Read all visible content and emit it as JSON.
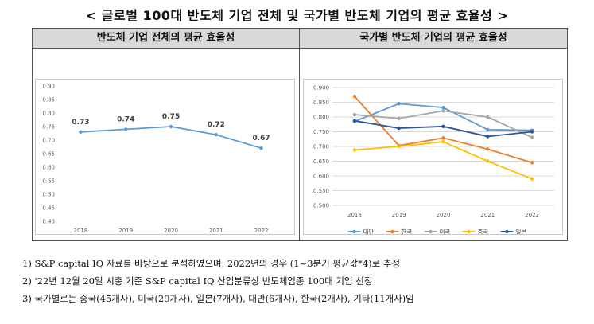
{
  "title": "< 글로벌 100대 반도체 기업 전체 및 국가별 반도체 기업의 평균 효율성 >",
  "chart_data": [
    {
      "type": "line",
      "title": "반도체 기업 전체의 평균 효율성",
      "x": [
        "2018",
        "2019",
        "2020",
        "2021",
        "2022"
      ],
      "series": [
        {
          "values": [
            0.73,
            0.74,
            0.75,
            0.72,
            0.67
          ],
          "color": "#5b9bd5"
        }
      ],
      "data_labels": [
        "0.73",
        "0.74",
        "0.75",
        "0.72",
        "0.67"
      ],
      "ylim": [
        0.4,
        0.9
      ],
      "yticks": [
        "0.40",
        "0.45",
        "0.50",
        "0.55",
        "0.60",
        "0.65",
        "0.70",
        "0.75",
        "0.80",
        "0.85",
        "0.90"
      ],
      "grid": false,
      "legend": "none"
    },
    {
      "type": "line",
      "title": "국가별 반도체 기업의 평균 효율성",
      "x": [
        "2018",
        "2019",
        "2020",
        "2021",
        "2022"
      ],
      "series": [
        {
          "name": "대만",
          "color": "#5b9bd5",
          "values": [
            0.785,
            0.845,
            0.832,
            0.757,
            0.755
          ]
        },
        {
          "name": "한국",
          "color": "#ed7d31",
          "values": [
            0.87,
            0.703,
            0.729,
            0.691,
            0.645
          ]
        },
        {
          "name": "미국",
          "color": "#a5a5a5",
          "values": [
            0.808,
            0.795,
            0.821,
            0.8,
            0.731
          ]
        },
        {
          "name": "중국",
          "color": "#ffc000",
          "values": [
            0.688,
            0.7,
            0.716,
            0.65,
            0.59
          ]
        },
        {
          "name": "일본",
          "color": "#2f5597",
          "values": [
            0.787,
            0.762,
            0.768,
            0.734,
            0.75
          ]
        }
      ],
      "ylim": [
        0.5,
        0.9
      ],
      "yticks": [
        "0.500",
        "0.550",
        "0.600",
        "0.650",
        "0.700",
        "0.750",
        "0.800",
        "0.850",
        "0.900"
      ],
      "grid": true,
      "legend": "bottom"
    }
  ],
  "notes": [
    "1) S&P capital IQ 자료를 바탕으로 분석하였으며, 2022년의 경우 (1~3분기 평균값*4)로 추정",
    "2) '22년 12월 20일 시총 기준 S&P capital IQ 산업분류상 반도체업종 100대 기업 선정",
    "3) 국가별로는 중국(45개사), 미국(29개사), 일본(7개사), 대만(6개사), 한국(2개사), 기타(11개사)임"
  ]
}
